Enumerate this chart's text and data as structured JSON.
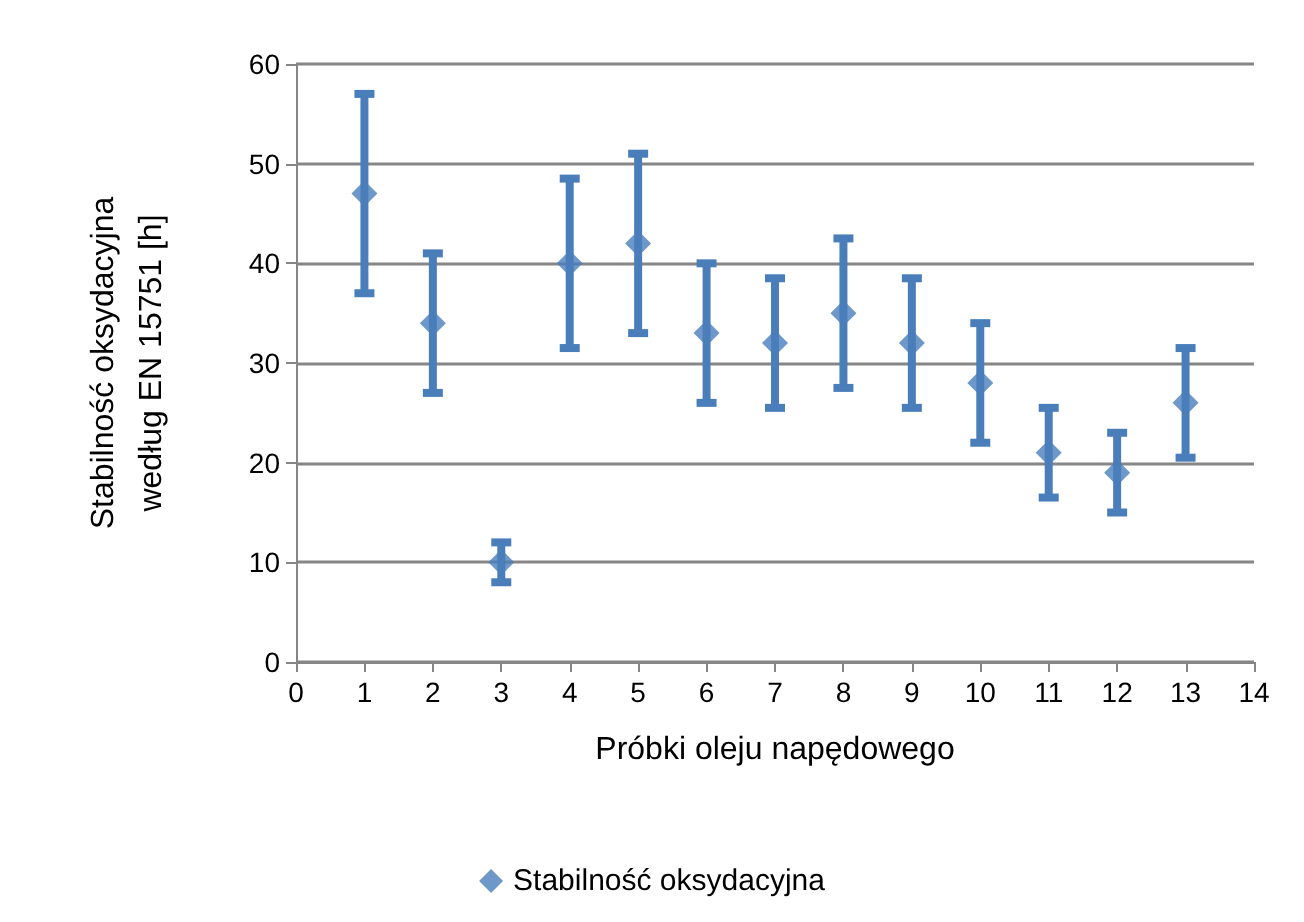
{
  "chart_data": {
    "type": "scatter",
    "xlabel": "Próbki oleju napędowego",
    "ylabel": "Stabilność oksydacyjna\nwedług EN 15751 [h]",
    "x": [
      1,
      2,
      3,
      4,
      5,
      6,
      7,
      8,
      9,
      10,
      11,
      12,
      13
    ],
    "series": [
      {
        "name": "Stabilność oksydacyjna",
        "color": "#4a7ebb",
        "values": [
          47,
          34,
          10,
          40,
          42,
          33,
          32,
          35,
          32,
          28,
          21,
          19,
          26
        ],
        "errors": [
          [
            37,
            57
          ],
          [
            27,
            41
          ],
          [
            8,
            12
          ],
          [
            31.5,
            48.5
          ],
          [
            33,
            51
          ],
          [
            26,
            40
          ],
          [
            25.5,
            38.5
          ],
          [
            27.5,
            42.5
          ],
          [
            25.5,
            38.5
          ],
          [
            22,
            34
          ],
          [
            16.5,
            25.5
          ],
          [
            15,
            23
          ],
          [
            20.5,
            31.5
          ]
        ]
      }
    ],
    "xlim": [
      0,
      14
    ],
    "xticks": [
      0,
      1,
      2,
      3,
      4,
      5,
      6,
      7,
      8,
      9,
      10,
      11,
      12,
      13,
      14
    ],
    "ylim": [
      0,
      60
    ],
    "yticks": [
      0,
      10,
      20,
      30,
      40,
      50,
      60
    ],
    "grid": "y",
    "legend": "bottom",
    "marker": "diamond"
  }
}
